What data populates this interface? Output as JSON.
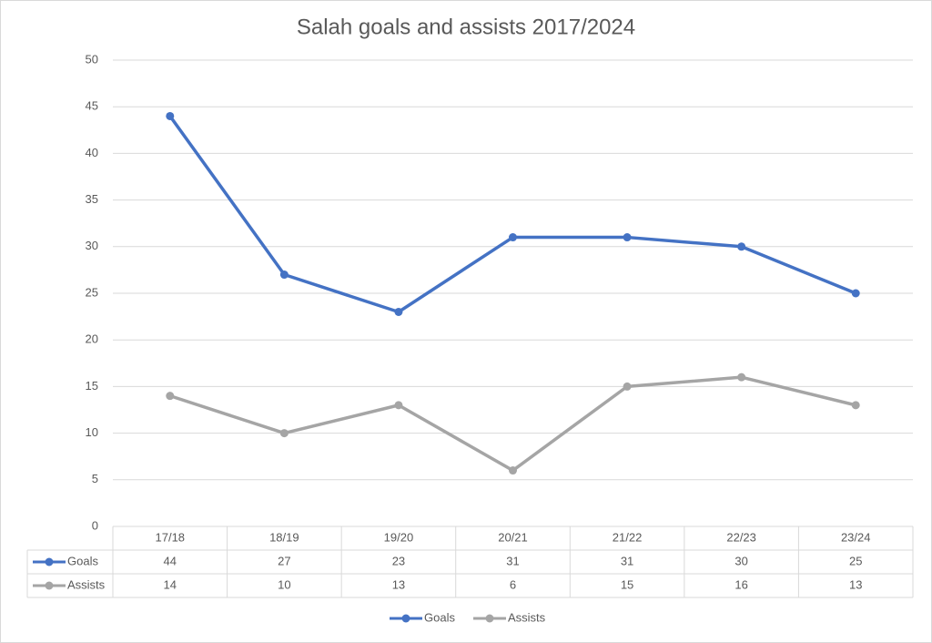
{
  "chart_data": {
    "type": "line",
    "title": "Salah goals and assists 2017/2024",
    "categories": [
      "17/18",
      "18/19",
      "19/20",
      "20/21",
      "21/22",
      "22/23",
      "23/24"
    ],
    "series": [
      {
        "name": "Goals",
        "color": "#4472c4",
        "values": [
          44,
          27,
          23,
          31,
          31,
          30,
          25
        ]
      },
      {
        "name": "Assists",
        "color": "#a5a5a5",
        "values": [
          14,
          10,
          13,
          6,
          15,
          16,
          13
        ]
      }
    ],
    "ylim": [
      0,
      50
    ],
    "yticks": [
      0,
      5,
      10,
      15,
      20,
      25,
      30,
      35,
      40,
      45,
      50
    ],
    "grid": true,
    "legend": "bottom"
  }
}
